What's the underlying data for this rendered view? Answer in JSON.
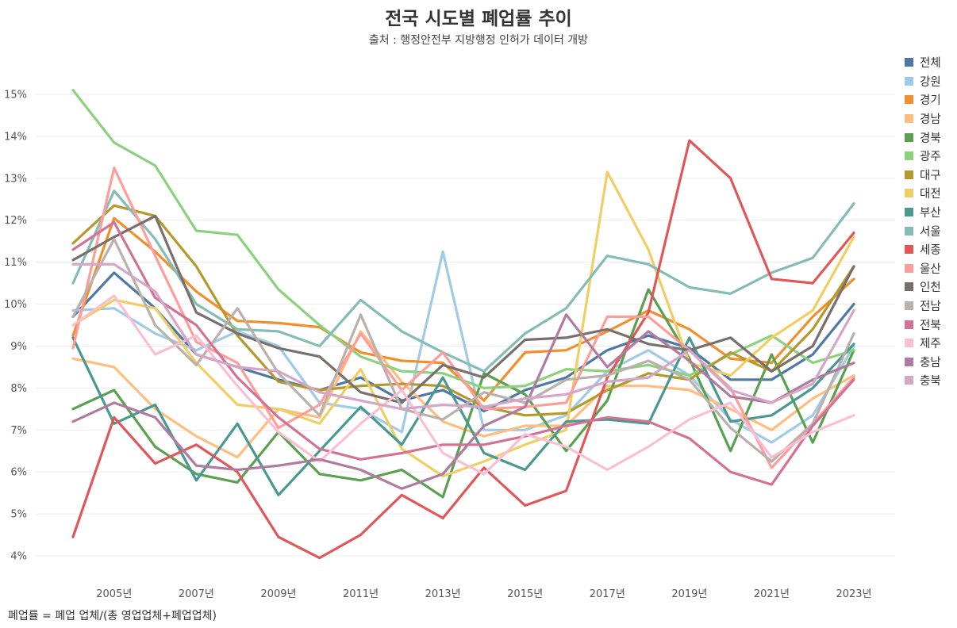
{
  "chart_data": {
    "type": "line",
    "title": "전국 시도별 폐업률 추이",
    "subtitle": "출처 : 행정안전부 지방행정 인허가 데이터 개방",
    "footnote": "폐업률 = 폐업 업체/(총 영업업체+폐업업체)",
    "x": [
      2004,
      2005,
      2006,
      2007,
      2008,
      2009,
      2010,
      2011,
      2012,
      2013,
      2014,
      2015,
      2016,
      2017,
      2018,
      2019,
      2020,
      2021,
      2022,
      2023
    ],
    "x_tick_labels": [
      "2005년",
      "2007년",
      "2009년",
      "2011년",
      "2013년",
      "2015년",
      "2017년",
      "2019년",
      "2021년",
      "2023년"
    ],
    "y_tick_labels": [
      "4%",
      "5%",
      "6%",
      "7%",
      "8%",
      "9%",
      "10%",
      "11%",
      "12%",
      "13%",
      "14%",
      "15%"
    ],
    "ylim": [
      3.6,
      15.5
    ],
    "grid": "horizontal",
    "legend_position": "right",
    "series": [
      {
        "name": "전체",
        "color": "#4e79a7",
        "values": [
          9.7,
          10.75,
          9.9,
          8.8,
          8.5,
          8.2,
          7.95,
          8.25,
          7.7,
          7.95,
          7.45,
          7.95,
          8.25,
          8.9,
          9.25,
          8.95,
          8.2,
          8.2,
          8.8,
          10.0
        ]
      },
      {
        "name": "강원",
        "color": "#a0cbe8",
        "values": [
          9.85,
          9.9,
          9.3,
          8.9,
          9.35,
          9.0,
          7.65,
          7.5,
          6.95,
          11.25,
          7.0,
          7.0,
          7.35,
          8.4,
          8.9,
          8.3,
          7.25,
          6.7,
          7.35,
          9.0
        ]
      },
      {
        "name": "경기",
        "color": "#f28e2b",
        "values": [
          9.25,
          12.05,
          11.25,
          10.3,
          9.6,
          9.55,
          9.45,
          8.85,
          8.65,
          8.6,
          7.7,
          8.85,
          8.9,
          9.35,
          9.85,
          9.4,
          8.7,
          8.6,
          9.7,
          10.6
        ]
      },
      {
        "name": "경남",
        "color": "#ffbe7d",
        "values": [
          8.7,
          8.5,
          7.5,
          6.85,
          6.35,
          7.5,
          7.3,
          9.35,
          8.15,
          7.2,
          6.85,
          7.1,
          7.1,
          8.05,
          8.05,
          7.95,
          7.5,
          7.0,
          7.75,
          8.3
        ]
      },
      {
        "name": "경북",
        "color": "#59a14f",
        "values": [
          7.5,
          7.95,
          6.6,
          5.95,
          5.75,
          6.95,
          5.95,
          5.8,
          6.05,
          5.4,
          8.35,
          7.85,
          6.5,
          7.7,
          10.35,
          8.7,
          6.5,
          8.8,
          6.7,
          8.9
        ]
      },
      {
        "name": "광주",
        "color": "#8cd17d",
        "values": [
          15.1,
          13.85,
          13.3,
          11.75,
          11.65,
          10.35,
          9.5,
          8.75,
          8.4,
          8.35,
          8.0,
          8.05,
          8.45,
          8.4,
          8.55,
          8.3,
          8.8,
          9.25,
          8.6,
          8.9
        ]
      },
      {
        "name": "대구",
        "color": "#b6992d",
        "values": [
          11.45,
          12.35,
          12.1,
          10.9,
          9.25,
          8.15,
          7.95,
          8.05,
          8.1,
          8.05,
          7.55,
          7.35,
          7.4,
          7.95,
          8.35,
          8.2,
          8.85,
          8.4,
          9.4,
          10.9
        ]
      },
      {
        "name": "대전",
        "color": "#f1ce63",
        "values": [
          9.5,
          10.1,
          9.9,
          8.6,
          7.6,
          7.5,
          7.15,
          8.45,
          6.55,
          5.9,
          6.25,
          6.65,
          7.0,
          13.15,
          11.3,
          8.6,
          8.3,
          9.2,
          9.85,
          11.6
        ]
      },
      {
        "name": "부산",
        "color": "#499894",
        "values": [
          9.2,
          7.15,
          7.6,
          5.8,
          7.15,
          5.45,
          6.5,
          7.55,
          6.65,
          8.25,
          6.45,
          6.05,
          7.2,
          7.25,
          7.15,
          9.2,
          7.2,
          7.35,
          8.0,
          9.05
        ]
      },
      {
        "name": "서울",
        "color": "#86bcb6",
        "values": [
          10.5,
          12.7,
          11.55,
          10.0,
          9.4,
          9.35,
          9.0,
          10.1,
          9.35,
          8.85,
          8.4,
          9.3,
          9.9,
          11.15,
          10.95,
          10.4,
          10.25,
          10.75,
          11.1,
          12.4
        ]
      },
      {
        "name": "세종",
        "color": "#e15759",
        "values": [
          4.45,
          7.3,
          6.2,
          6.65,
          6.0,
          4.45,
          3.95,
          4.5,
          5.45,
          4.9,
          6.1,
          5.2,
          5.55,
          8.25,
          9.8,
          13.9,
          13.0,
          10.6,
          10.5,
          11.7
        ]
      },
      {
        "name": "울산",
        "color": "#ff9d9a",
        "values": [
          8.95,
          13.25,
          11.15,
          9.1,
          8.6,
          7.05,
          7.6,
          9.3,
          7.95,
          8.85,
          7.5,
          7.55,
          7.65,
          9.7,
          9.7,
          8.9,
          8.0,
          6.1,
          7.15,
          8.25
        ]
      },
      {
        "name": "인천",
        "color": "#79706e",
        "values": [
          11.05,
          11.6,
          12.1,
          9.8,
          9.3,
          8.95,
          8.75,
          7.9,
          7.65,
          8.55,
          8.25,
          9.15,
          9.2,
          9.4,
          9.05,
          8.9,
          9.2,
          8.4,
          9.0,
          10.9
        ]
      },
      {
        "name": "전남",
        "color": "#bab0ac",
        "values": [
          9.7,
          11.55,
          9.5,
          8.55,
          9.9,
          8.35,
          7.35,
          9.75,
          7.5,
          7.25,
          7.9,
          7.65,
          8.2,
          8.3,
          8.65,
          8.2,
          7.05,
          6.25,
          7.15,
          9.3
        ]
      },
      {
        "name": "전북",
        "color": "#d37295",
        "values": [
          11.3,
          11.95,
          10.15,
          9.5,
          8.25,
          7.3,
          6.55,
          6.3,
          6.45,
          6.65,
          6.65,
          6.85,
          7.1,
          7.3,
          7.2,
          6.8,
          6.0,
          5.7,
          7.1,
          8.2
        ]
      },
      {
        "name": "제주",
        "color": "#fabfd2",
        "values": [
          9.5,
          10.2,
          8.8,
          9.25,
          8.05,
          6.95,
          6.25,
          7.15,
          7.95,
          6.45,
          5.95,
          6.9,
          6.6,
          6.05,
          6.6,
          7.25,
          7.65,
          6.35,
          6.95,
          7.35
        ]
      },
      {
        "name": "충남",
        "color": "#b07aa1",
        "values": [
          7.2,
          7.65,
          7.3,
          6.15,
          6.05,
          6.15,
          6.3,
          6.05,
          5.6,
          5.95,
          7.1,
          7.55,
          9.75,
          8.5,
          9.35,
          8.65,
          7.8,
          7.65,
          8.2,
          8.6
        ]
      },
      {
        "name": "충북",
        "color": "#d4a6c8",
        "values": [
          10.95,
          10.95,
          10.3,
          8.8,
          8.5,
          8.4,
          7.9,
          7.7,
          7.5,
          7.6,
          7.55,
          7.75,
          7.85,
          8.15,
          8.25,
          8.9,
          7.95,
          7.65,
          8.1,
          9.85
        ]
      }
    ]
  }
}
